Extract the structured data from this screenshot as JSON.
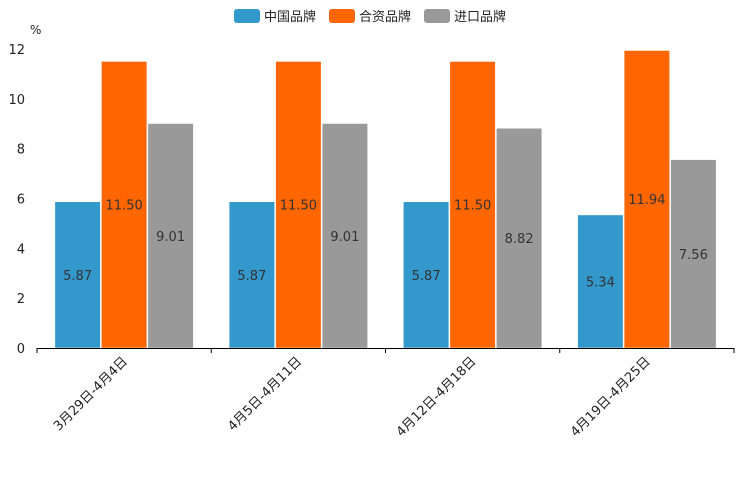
{
  "chart_data": {
    "type": "bar",
    "title": "",
    "ylabel": "%",
    "xlabel": "",
    "ylim": [
      0,
      12
    ],
    "yticks": [
      0,
      2,
      4,
      6,
      8,
      10,
      12
    ],
    "categories": [
      "3月29日-4月4日",
      "4月5日-4月11日",
      "4月12日-4月18日",
      "4月19日-4月25日"
    ],
    "series": [
      {
        "name": "中国品牌",
        "color": "#3398cc",
        "values": [
          5.87,
          5.87,
          5.87,
          5.34
        ],
        "labels": [
          "5.87",
          "5.87",
          "5.87",
          "5.34"
        ]
      },
      {
        "name": "合资品牌",
        "color": "#ff6600",
        "values": [
          11.5,
          11.5,
          11.5,
          11.94
        ],
        "labels": [
          "11.50",
          "11.50",
          "11.50",
          "11.94"
        ]
      },
      {
        "name": "进口品牌",
        "color": "#999999",
        "values": [
          9.01,
          9.01,
          8.82,
          7.56
        ],
        "labels": [
          "9.01",
          "9.01",
          "8.82",
          "7.56"
        ]
      }
    ],
    "legend_position": "top-center",
    "grid": false
  }
}
